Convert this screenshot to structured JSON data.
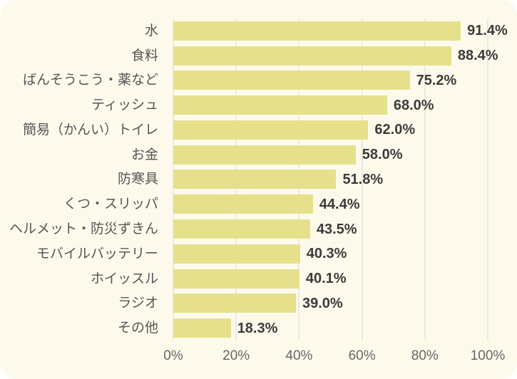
{
  "colors": {
    "page_bg": "#ffffff",
    "card_bg": "#fdfaec",
    "bar": "#e6e08c",
    "gridline": "#dbdbd2",
    "category_text": "#555555",
    "value_text": "#3b3b3b",
    "tick_text": "#666666"
  },
  "chart_data": {
    "type": "bar",
    "orientation": "horizontal",
    "title": "",
    "xlabel": "",
    "ylabel": "",
    "xlim": [
      0,
      100
    ],
    "grid": "vertical",
    "categories": [
      "水",
      "食料",
      "ばんそうこう・薬など",
      "ティッシュ",
      "簡易（かんい）トイレ",
      "お金",
      "防寒具",
      "くつ・スリッパ",
      "ヘルメット・防災ずきん",
      "モバイルバッテリー",
      "ホイッスル",
      "ラジオ",
      "その他"
    ],
    "values": [
      91.4,
      88.4,
      75.2,
      68.0,
      62.0,
      58.0,
      51.8,
      44.4,
      43.5,
      40.3,
      40.1,
      39.0,
      18.3
    ],
    "value_labels": [
      "91.4%",
      "88.4%",
      "75.2%",
      "68.0%",
      "62.0%",
      "58.0%",
      "51.8%",
      "44.4%",
      "43.5%",
      "40.3%",
      "40.1%",
      "39.0%",
      "18.3%"
    ],
    "x_ticks": [
      {
        "value": 0,
        "label": "0%"
      },
      {
        "value": 20,
        "label": "20%"
      },
      {
        "value": 40,
        "label": "40%"
      },
      {
        "value": 60,
        "label": "60%"
      },
      {
        "value": 80,
        "label": "80%"
      },
      {
        "value": 100,
        "label": "100%"
      }
    ]
  }
}
